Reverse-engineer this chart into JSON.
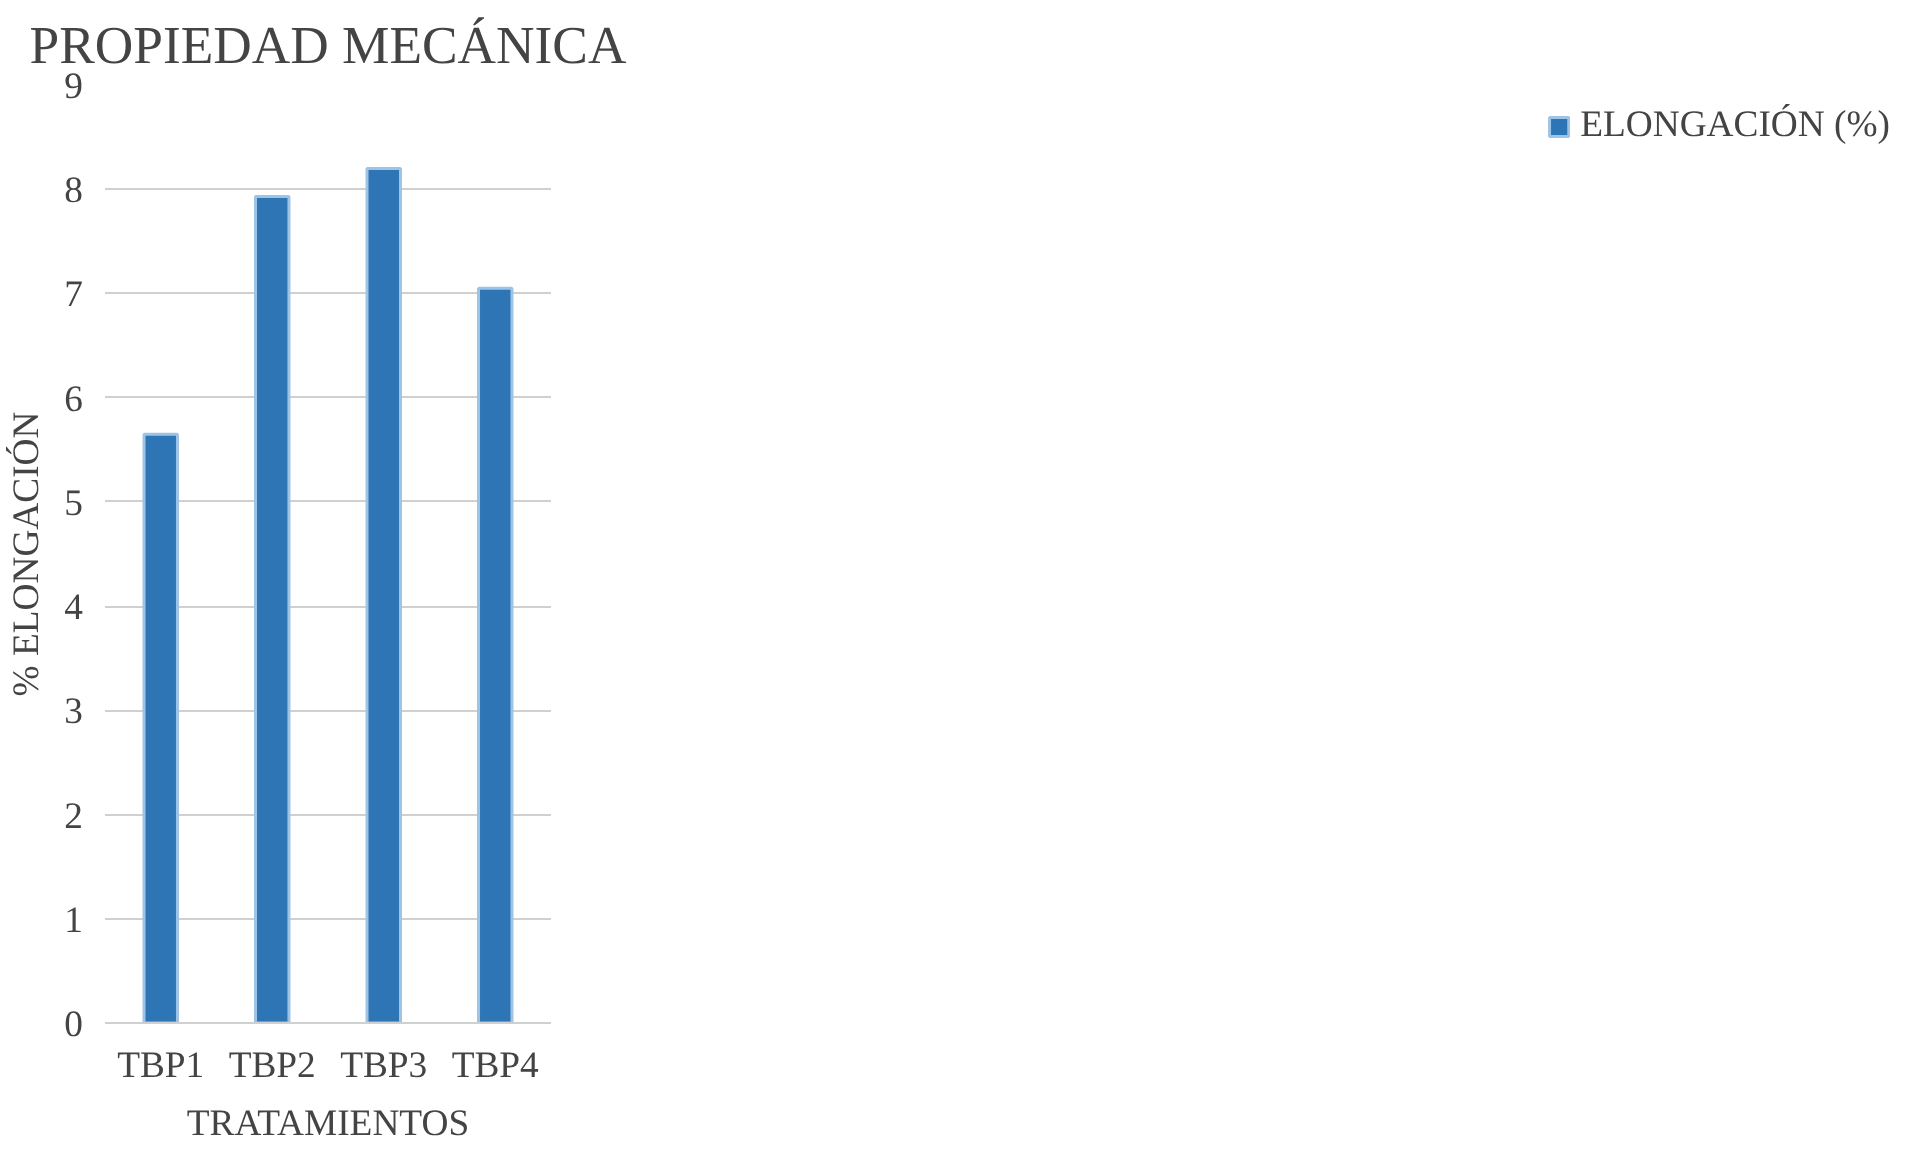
{
  "chart_data": {
    "type": "bar",
    "title": "PROPIEDAD MECÁNICA",
    "xlabel": "TRATAMIENTOS",
    "ylabel": "% ELONGACIÓN",
    "categories": [
      "TBP1",
      "TBP2",
      "TBP3",
      "TBP4"
    ],
    "series": [
      {
        "name": "ELONGACIÓN (%)",
        "color": "#2e75b6",
        "values": [
          5.65,
          7.93,
          8.2,
          7.05
        ]
      }
    ],
    "ylim": [
      0,
      9
    ],
    "yticks": [
      0,
      1,
      2,
      3,
      4,
      5,
      6,
      7,
      8,
      9
    ],
    "grid": "y",
    "legend": "right"
  }
}
